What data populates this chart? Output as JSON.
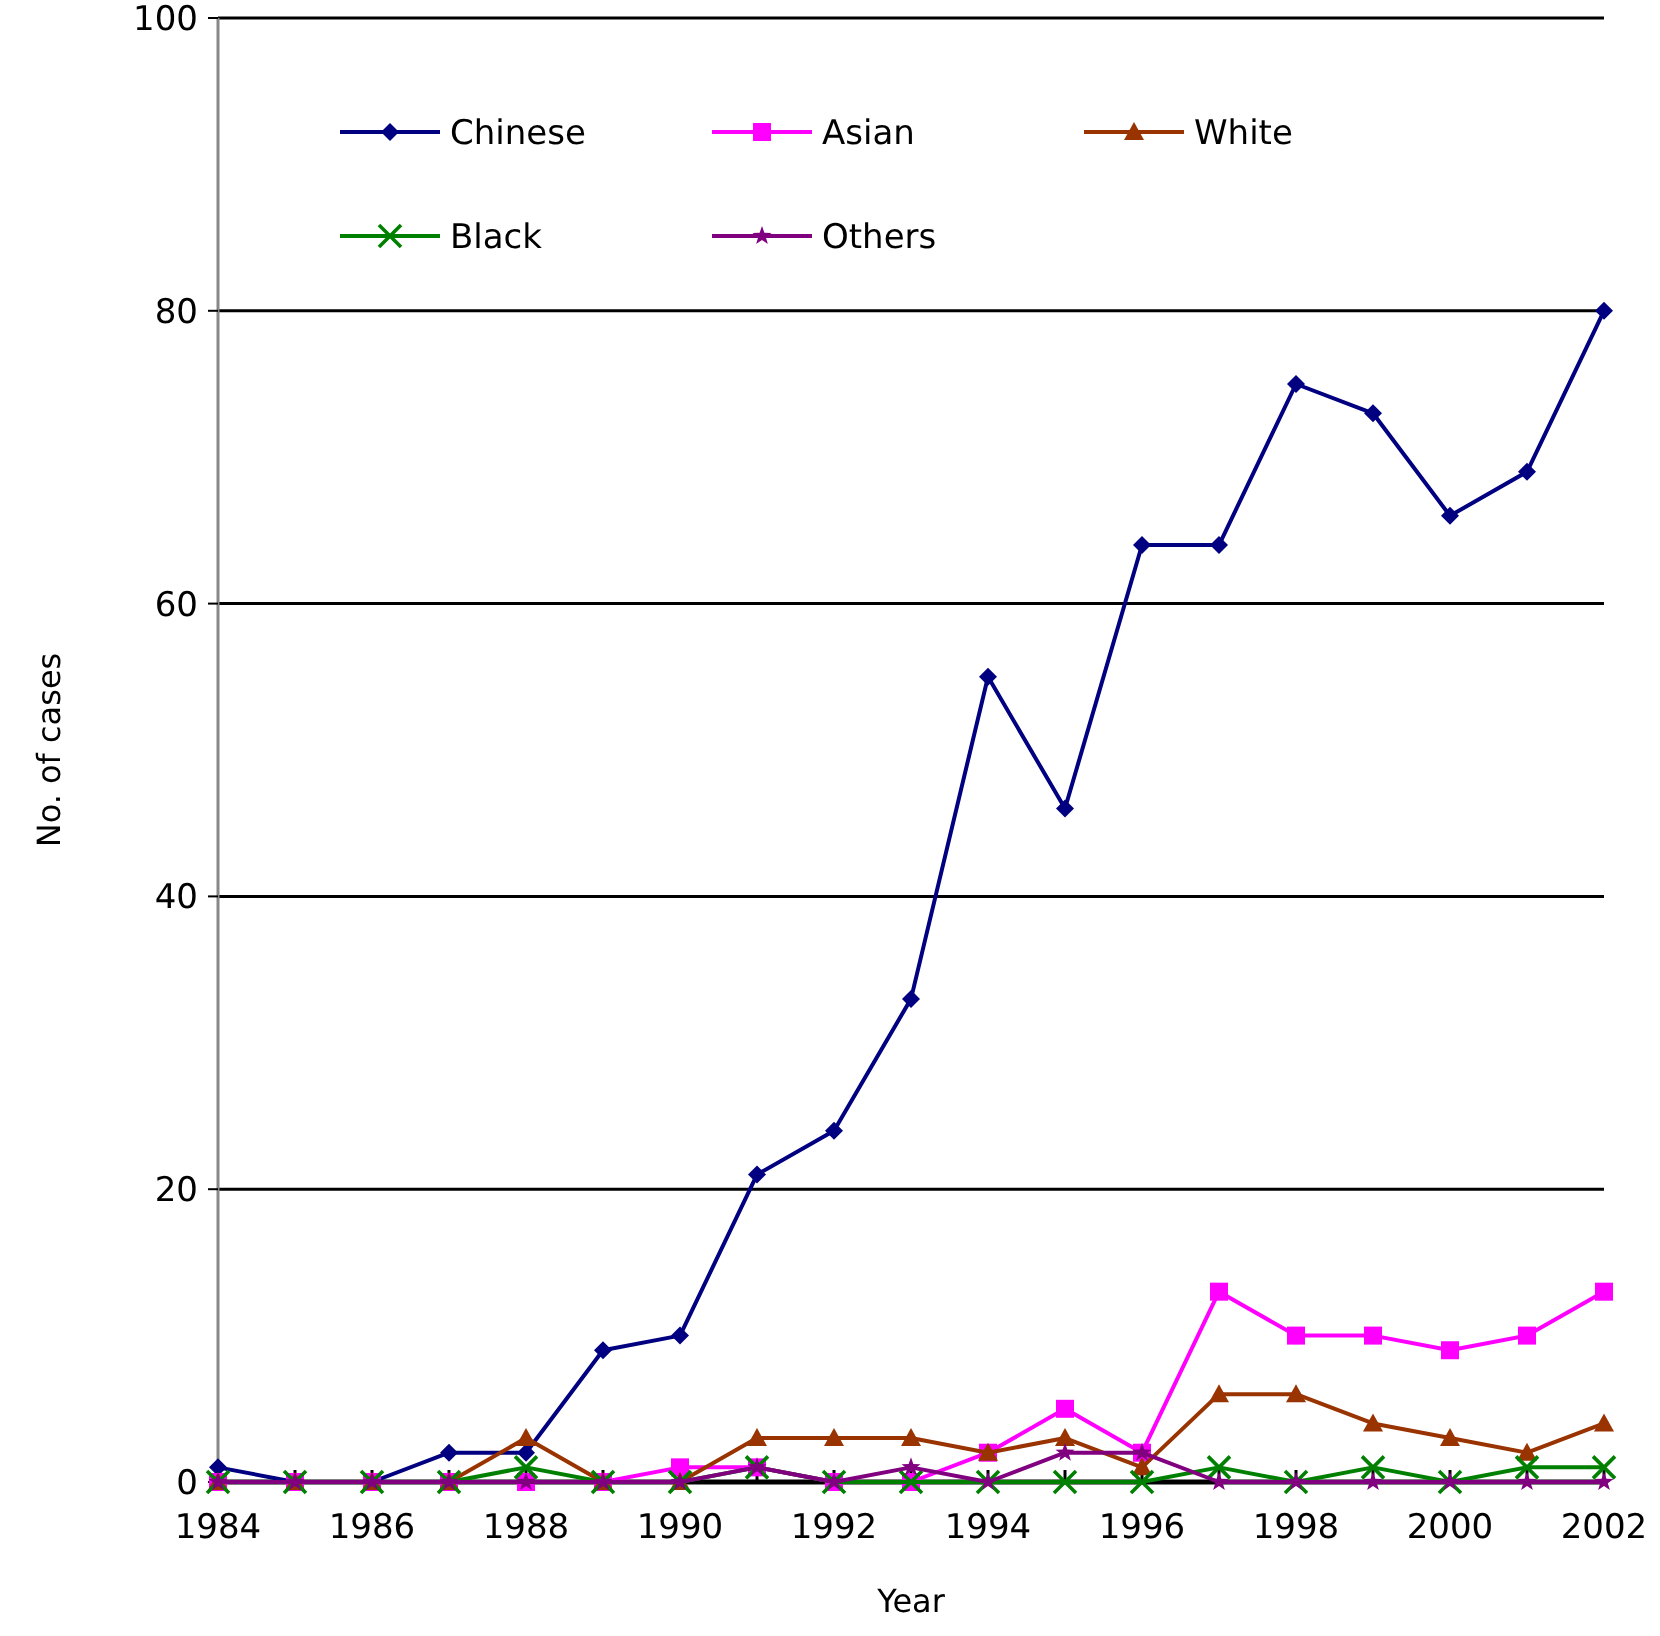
{
  "chart_data": {
    "type": "line",
    "xlabel": "Year",
    "ylabel": "No. of cases",
    "x": [
      1984,
      1985,
      1986,
      1987,
      1988,
      1989,
      1990,
      1991,
      1992,
      1993,
      1994,
      1995,
      1996,
      1997,
      1998,
      1999,
      2000,
      2001,
      2002
    ],
    "xlim": [
      1984,
      2002
    ],
    "xticks": [
      1984,
      1986,
      1988,
      1990,
      1992,
      1994,
      1996,
      1998,
      2000,
      2002
    ],
    "ylim": [
      0,
      100
    ],
    "yticks": [
      0,
      20,
      40,
      60,
      80,
      100
    ],
    "grid": "y",
    "legend": "top",
    "series": [
      {
        "name": "Chinese",
        "color": "#000080",
        "marker": "diamond",
        "values": [
          1,
          0,
          0,
          2,
          2,
          9,
          10,
          21,
          24,
          33,
          55,
          46,
          64,
          64,
          75,
          73,
          66,
          69,
          80
        ]
      },
      {
        "name": "Asian",
        "color": "#ff00ff",
        "marker": "square",
        "values": [
          0,
          0,
          0,
          0,
          0,
          0,
          1,
          1,
          0,
          0,
          2,
          5,
          2,
          13,
          10,
          10,
          9,
          10,
          13
        ]
      },
      {
        "name": "White",
        "color": "#993300",
        "marker": "triangle",
        "values": [
          0,
          0,
          0,
          0,
          3,
          0,
          0,
          3,
          3,
          3,
          2,
          3,
          1,
          6,
          6,
          4,
          3,
          2,
          4
        ]
      },
      {
        "name": "Black",
        "color": "#008000",
        "marker": "cross",
        "values": [
          0,
          0,
          0,
          0,
          1,
          0,
          0,
          1,
          0,
          0,
          0,
          0,
          0,
          1,
          0,
          1,
          0,
          1,
          1
        ]
      },
      {
        "name": "Others",
        "color": "#800080",
        "marker": "star",
        "values": [
          0,
          0,
          0,
          0,
          0,
          0,
          0,
          1,
          0,
          1,
          0,
          2,
          2,
          0,
          0,
          0,
          0,
          0,
          0
        ]
      }
    ]
  }
}
